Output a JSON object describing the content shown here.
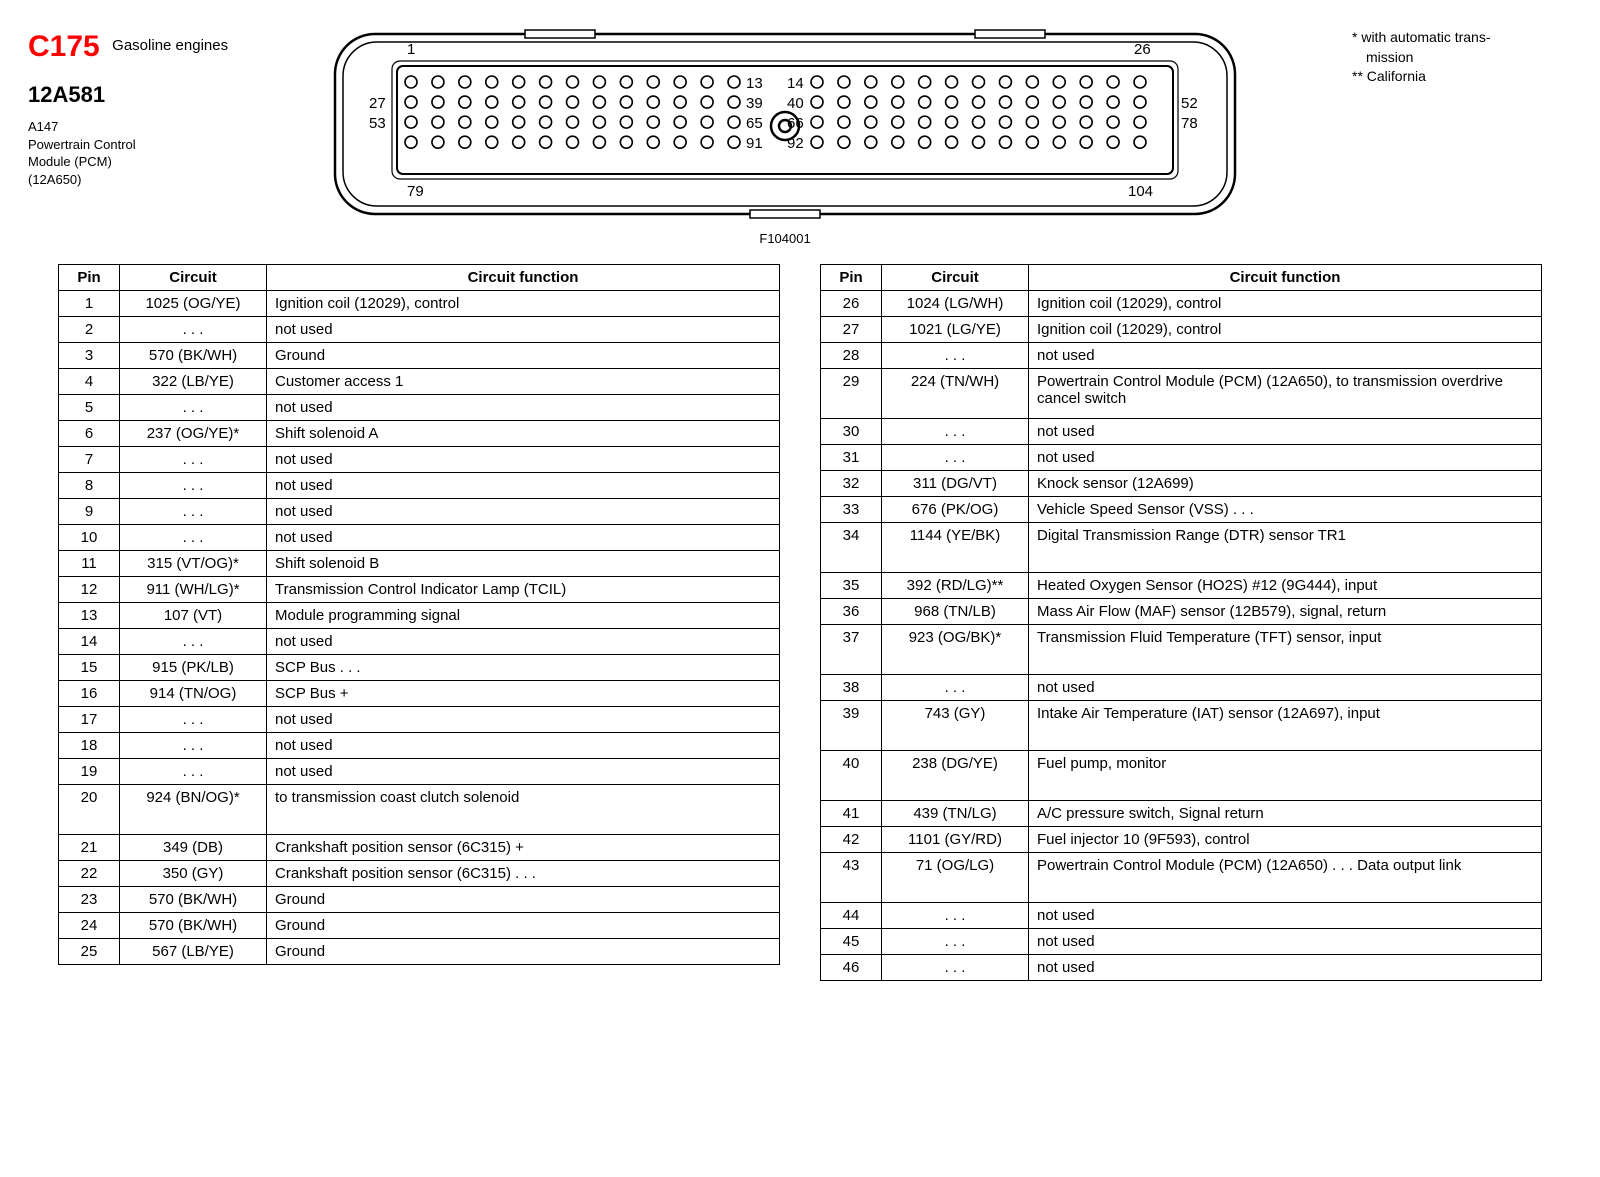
{
  "header": {
    "connector_code": "C175",
    "connector_subtitle": "Gasoline engines",
    "part_number": "12A581",
    "module_lines": [
      "A147",
      "Powertrain Control",
      "Module (PCM)",
      "(12A650)"
    ],
    "figure_label": "F104001"
  },
  "notes": {
    "line1": "*  with automatic trans-",
    "line2": "    mission",
    "line3": "** California"
  },
  "connector_diagram": {
    "outer_width": 900,
    "outer_height": 180,
    "stroke": "#000000",
    "stroke_width": 2.5,
    "pin_radius": 6,
    "left_labels": [
      {
        "n": "1",
        "y": 0
      },
      {
        "n": "27",
        "y": 1
      },
      {
        "n": "53",
        "y": 2
      },
      {
        "n": "79",
        "y": 3
      }
    ],
    "right_labels_leftblock": [
      {
        "n": "13",
        "y": 0
      },
      {
        "n": "39",
        "y": 1
      },
      {
        "n": "65",
        "y": 2
      },
      {
        "n": "91",
        "y": 3
      }
    ],
    "left_labels_rightblock": [
      {
        "n": "14",
        "y": 0
      },
      {
        "n": "40",
        "y": 1
      },
      {
        "n": "66",
        "y": 2
      },
      {
        "n": "92",
        "y": 3
      }
    ],
    "right_labels": [
      {
        "n": "26",
        "y": 0
      },
      {
        "n": "52",
        "y": 1
      },
      {
        "n": "78",
        "y": 2
      },
      {
        "n": "104",
        "y": 3
      }
    ]
  },
  "table_headers": {
    "pin": "Pin",
    "circuit": "Circuit",
    "function": "Circuit function"
  },
  "left_table": [
    {
      "pin": "1",
      "circuit": "1025 (OG/YE)",
      "func": "Ignition coil (12029), control"
    },
    {
      "pin": "2",
      "circuit": ". . .",
      "func": "not used",
      "nu": true
    },
    {
      "pin": "3",
      "circuit": "570 (BK/WH)",
      "func": "Ground"
    },
    {
      "pin": "4",
      "circuit": "322 (LB/YE)",
      "func": "Customer access 1"
    },
    {
      "pin": "5",
      "circuit": ". . .",
      "func": "not used",
      "nu": true
    },
    {
      "pin": "6",
      "circuit": "237 (OG/YE)*",
      "func": "Shift solenoid A"
    },
    {
      "pin": "7",
      "circuit": ". . .",
      "func": "not used",
      "nu": true
    },
    {
      "pin": "8",
      "circuit": ". . .",
      "func": "not used",
      "nu": true
    },
    {
      "pin": "9",
      "circuit": ". . .",
      "func": "not used",
      "nu": true
    },
    {
      "pin": "10",
      "circuit": ". . .",
      "func": "not used",
      "nu": true
    },
    {
      "pin": "11",
      "circuit": "315 (VT/OG)*",
      "func": "Shift solenoid B"
    },
    {
      "pin": "12",
      "circuit": "911 (WH/LG)*",
      "func": "Transmission Control Indicator Lamp (TCIL)"
    },
    {
      "pin": "13",
      "circuit": "107 (VT)",
      "func": "Module programming signal"
    },
    {
      "pin": "14",
      "circuit": ". . .",
      "func": "not used",
      "nu": true
    },
    {
      "pin": "15",
      "circuit": "915 (PK/LB)",
      "func": "SCP Bus . . ."
    },
    {
      "pin": "16",
      "circuit": "914 (TN/OG)",
      "func": "SCP Bus +"
    },
    {
      "pin": "17",
      "circuit": ". . .",
      "func": "not used",
      "nu": true
    },
    {
      "pin": "18",
      "circuit": ". . .",
      "func": "not used",
      "nu": true
    },
    {
      "pin": "19",
      "circuit": ". . .",
      "func": "not used",
      "nu": true
    },
    {
      "pin": "20",
      "circuit": "924 (BN/OG)*",
      "func": "to transmission coast clutch solenoid",
      "tall": true
    },
    {
      "pin": "21",
      "circuit": "349 (DB)",
      "func": "Crankshaft position sensor (6C315) +"
    },
    {
      "pin": "22",
      "circuit": "350 (GY)",
      "func": "Crankshaft position sensor (6C315) . . ."
    },
    {
      "pin": "23",
      "circuit": "570 (BK/WH)",
      "func": "Ground"
    },
    {
      "pin": "24",
      "circuit": "570 (BK/WH)",
      "func": "Ground"
    },
    {
      "pin": "25",
      "circuit": "567 (LB/YE)",
      "func": "Ground"
    }
  ],
  "right_table": [
    {
      "pin": "26",
      "circuit": "1024 (LG/WH)",
      "func": "Ignition coil (12029), control"
    },
    {
      "pin": "27",
      "circuit": "1021 (LG/YE)",
      "func": "Ignition coil (12029), control"
    },
    {
      "pin": "28",
      "circuit": ". . .",
      "func": "not used",
      "nu": true
    },
    {
      "pin": "29",
      "circuit": "224 (TN/WH)",
      "func": "Powertrain Control Module (PCM) (12A650), to transmission overdrive cancel switch",
      "tall": true
    },
    {
      "pin": "30",
      "circuit": ". . .",
      "func": "not used",
      "nu": true
    },
    {
      "pin": "31",
      "circuit": ". . .",
      "func": "not used",
      "nu": true
    },
    {
      "pin": "32",
      "circuit": "311 (DG/VT)",
      "func": "Knock sensor (12A699)"
    },
    {
      "pin": "33",
      "circuit": "676 (PK/OG)",
      "func": "Vehicle Speed Sensor (VSS) . . ."
    },
    {
      "pin": "34",
      "circuit": "1144 (YE/BK)",
      "func": "Digital Transmission Range (DTR) sensor TR1",
      "tall": true
    },
    {
      "pin": "35",
      "circuit": "392 (RD/LG)**",
      "func": "Heated Oxygen Sensor (HO2S) #12 (9G444), input"
    },
    {
      "pin": "36",
      "circuit": "968 (TN/LB)",
      "func": "Mass Air Flow (MAF) sensor (12B579), signal, return"
    },
    {
      "pin": "37",
      "circuit": "923 (OG/BK)*",
      "func": "Transmission Fluid Temperature (TFT) sensor, input",
      "tall": true
    },
    {
      "pin": "38",
      "circuit": ". . .",
      "func": "not used",
      "nu": true
    },
    {
      "pin": "39",
      "circuit": "743 (GY)",
      "func": "Intake Air Temperature (IAT) sensor (12A697), input",
      "tall": true
    },
    {
      "pin": "40",
      "circuit": "238 (DG/YE)",
      "func": "Fuel pump, monitor",
      "tall": true
    },
    {
      "pin": "41",
      "circuit": "439 (TN/LG)",
      "func": "A/C pressure switch, Signal return"
    },
    {
      "pin": "42",
      "circuit": "1101 (GY/RD)",
      "func": "Fuel injector 10 (9F593), control"
    },
    {
      "pin": "43",
      "circuit": "71 (OG/LG)",
      "func": "Powertrain Control Module (PCM) (12A650) . . .   Data output link",
      "tall": true
    },
    {
      "pin": "44",
      "circuit": ". . .",
      "func": "not used",
      "nu": true
    },
    {
      "pin": "45",
      "circuit": ". . .",
      "func": "not used",
      "nu": true
    },
    {
      "pin": "46",
      "circuit": ". . .",
      "func": "not used",
      "nu": true
    }
  ]
}
